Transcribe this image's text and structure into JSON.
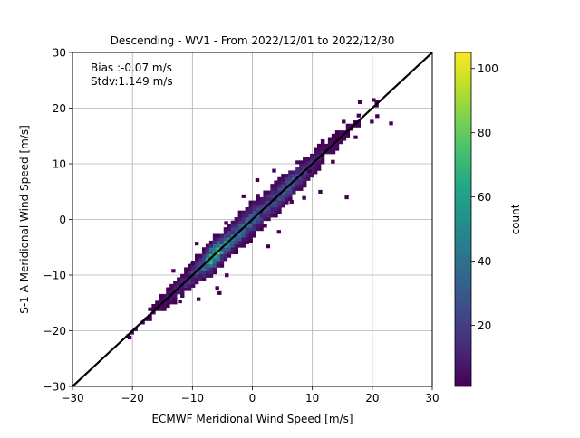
{
  "chart_data": {
    "type": "heatmap",
    "title": "Descending - WV1 - From 2022/12/01 to 2022/12/30",
    "xlabel": "ECMWF Meridional Wind Speed [m/s]",
    "ylabel": "S-1 A Meridional Wind Speed [m/s]",
    "xlim": [
      -30,
      30
    ],
    "ylim": [
      -30,
      30
    ],
    "xticks": [
      -30,
      -20,
      -10,
      0,
      10,
      20,
      30
    ],
    "yticks": [
      -30,
      -20,
      -10,
      0,
      10,
      20,
      30
    ],
    "xtick_labels": [
      "−30",
      "−20",
      "−10",
      "0",
      "10",
      "20",
      "30"
    ],
    "ytick_labels": [
      "−30",
      "−20",
      "−10",
      "0",
      "10",
      "20",
      "30"
    ],
    "grid": true,
    "annotations": [
      "Bias :-0.07 m/s",
      "Stdv:1.149 m/s"
    ],
    "reference_line": {
      "slope": 1,
      "intercept": 0,
      "color": "#000000"
    },
    "colorbar": {
      "label": "count",
      "colormap": "viridis",
      "range": [
        1,
        105
      ],
      "ticks": [
        20,
        40,
        60,
        80,
        100
      ],
      "tick_labels": [
        "20",
        "40",
        "60",
        "80",
        "100"
      ]
    },
    "stats": {
      "bias_m_s": -0.07,
      "stdv_m_s": 1.149
    },
    "density_profile": {
      "x_center": [
        -21,
        -18,
        -15,
        -12,
        -10,
        -8,
        -7,
        -6,
        -4,
        -2,
        0,
        2,
        4,
        6,
        8,
        10,
        12,
        15,
        18,
        21
      ],
      "peak_count": [
        1,
        3,
        6,
        12,
        22,
        45,
        90,
        70,
        40,
        38,
        30,
        28,
        30,
        32,
        20,
        12,
        6,
        3,
        2,
        1
      ],
      "spread": [
        0.5,
        0.7,
        0.9,
        1.0,
        1.1,
        1.2,
        1.2,
        1.2,
        1.2,
        1.3,
        1.4,
        1.3,
        1.3,
        1.2,
        1.2,
        1.1,
        1.0,
        0.9,
        0.7,
        0.5
      ]
    },
    "outliers": [
      {
        "x": -20.8,
        "y": -21.5
      },
      {
        "x": -17.5,
        "y": -17.8
      },
      {
        "x": -16.2,
        "y": -15.3
      },
      {
        "x": -14.3,
        "y": -12.8
      },
      {
        "x": -13.5,
        "y": -9.5
      },
      {
        "x": -9.3,
        "y": -14.6
      },
      {
        "x": -6.2,
        "y": -12.6
      },
      {
        "x": -4.6,
        "y": -10.3
      },
      {
        "x": -5.8,
        "y": -13.5
      },
      {
        "x": -9.6,
        "y": -4.6
      },
      {
        "x": -4.7,
        "y": -0.9
      },
      {
        "x": -0.6,
        "y": -4.1
      },
      {
        "x": 2.3,
        "y": -5.1
      },
      {
        "x": 4.1,
        "y": -2.5
      },
      {
        "x": -1.8,
        "y": 3.9
      },
      {
        "x": 0.5,
        "y": 6.8
      },
      {
        "x": 3.3,
        "y": 8.5
      },
      {
        "x": 6.2,
        "y": 2.9
      },
      {
        "x": 8.3,
        "y": 3.6
      },
      {
        "x": 9.2,
        "y": 8.4
      },
      {
        "x": 11.0,
        "y": 4.7
      },
      {
        "x": 15.4,
        "y": 3.7
      },
      {
        "x": 11.4,
        "y": 13.8
      },
      {
        "x": 13.1,
        "y": 10.1
      },
      {
        "x": 14.9,
        "y": 17.3
      },
      {
        "x": 16.9,
        "y": 14.5
      },
      {
        "x": 19.6,
        "y": 17.3
      },
      {
        "x": 20.5,
        "y": 18.3
      },
      {
        "x": 17.6,
        "y": 20.8
      },
      {
        "x": 19.9,
        "y": 21.2
      },
      {
        "x": 22.8,
        "y": 17.0
      },
      {
        "x": -10.3,
        "y": -8.2
      },
      {
        "x": -12.4,
        "y": -15.0
      }
    ]
  }
}
